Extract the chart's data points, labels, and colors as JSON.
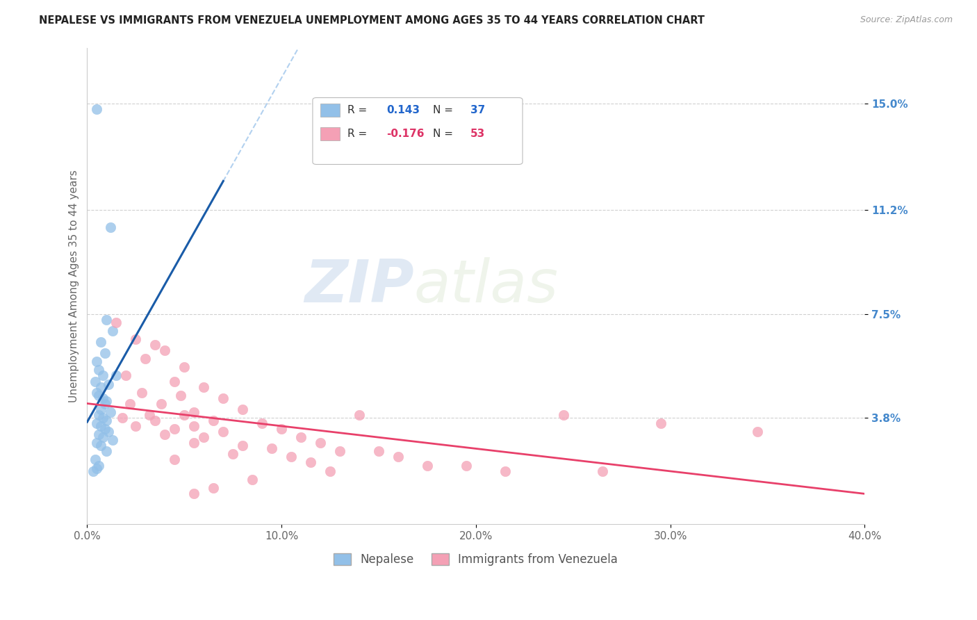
{
  "title": "NEPALESE VS IMMIGRANTS FROM VENEZUELA UNEMPLOYMENT AMONG AGES 35 TO 44 YEARS CORRELATION CHART",
  "source": "Source: ZipAtlas.com",
  "ylabel": "Unemployment Among Ages 35 to 44 years",
  "xlim": [
    0.0,
    40.0
  ],
  "ylim": [
    0.0,
    17.0
  ],
  "yticks": [
    3.8,
    7.5,
    11.2,
    15.0
  ],
  "xticks": [
    0.0,
    10.0,
    20.0,
    30.0,
    40.0
  ],
  "xtick_labels": [
    "0.0%",
    "10.0%",
    "20.0%",
    "30.0%",
    "40.0%"
  ],
  "ytick_labels": [
    "3.8%",
    "7.5%",
    "11.2%",
    "15.0%"
  ],
  "nepalese_color": "#92c0e8",
  "venezuela_color": "#f4a0b5",
  "nepalese_line_color": "#1a5ca8",
  "venezuela_line_color": "#e8406a",
  "nepalese_dash_color": "#aaccee",
  "nepalese_R": 0.143,
  "nepalese_N": 37,
  "venezuela_R": -0.176,
  "venezuela_N": 53,
  "watermark_zip": "ZIP",
  "watermark_atlas": "atlas",
  "nepalese_scatter": [
    [
      0.5,
      14.8
    ],
    [
      1.2,
      10.6
    ],
    [
      1.0,
      7.3
    ],
    [
      1.3,
      6.9
    ],
    [
      0.7,
      6.5
    ],
    [
      0.9,
      6.1
    ],
    [
      0.5,
      5.8
    ],
    [
      0.6,
      5.5
    ],
    [
      0.8,
      5.3
    ],
    [
      0.4,
      5.1
    ],
    [
      1.1,
      5.0
    ],
    [
      0.7,
      4.9
    ],
    [
      0.5,
      4.7
    ],
    [
      0.6,
      4.6
    ],
    [
      0.8,
      4.5
    ],
    [
      1.0,
      4.4
    ],
    [
      0.9,
      4.3
    ],
    [
      0.7,
      4.1
    ],
    [
      1.2,
      4.0
    ],
    [
      0.6,
      3.9
    ],
    [
      0.8,
      3.8
    ],
    [
      1.0,
      3.7
    ],
    [
      0.5,
      3.6
    ],
    [
      0.7,
      3.5
    ],
    [
      0.9,
      3.4
    ],
    [
      1.1,
      3.3
    ],
    [
      0.6,
      3.2
    ],
    [
      0.8,
      3.1
    ],
    [
      1.3,
      3.0
    ],
    [
      0.5,
      2.9
    ],
    [
      0.7,
      2.8
    ],
    [
      1.0,
      2.6
    ],
    [
      1.5,
      5.3
    ],
    [
      0.4,
      2.3
    ],
    [
      0.6,
      2.1
    ],
    [
      0.5,
      2.0
    ],
    [
      0.3,
      1.9
    ]
  ],
  "venezuela_scatter": [
    [
      1.5,
      7.2
    ],
    [
      2.5,
      6.6
    ],
    [
      3.5,
      6.4
    ],
    [
      4.0,
      6.2
    ],
    [
      3.0,
      5.9
    ],
    [
      5.0,
      5.6
    ],
    [
      2.0,
      5.3
    ],
    [
      4.5,
      5.1
    ],
    [
      6.0,
      4.9
    ],
    [
      2.8,
      4.7
    ],
    [
      4.8,
      4.6
    ],
    [
      7.0,
      4.5
    ],
    [
      2.2,
      4.3
    ],
    [
      3.8,
      4.3
    ],
    [
      8.0,
      4.1
    ],
    [
      5.5,
      4.0
    ],
    [
      3.2,
      3.9
    ],
    [
      5.0,
      3.9
    ],
    [
      1.8,
      3.8
    ],
    [
      6.5,
      3.7
    ],
    [
      3.5,
      3.7
    ],
    [
      9.0,
      3.6
    ],
    [
      2.5,
      3.5
    ],
    [
      5.5,
      3.5
    ],
    [
      10.0,
      3.4
    ],
    [
      4.5,
      3.4
    ],
    [
      7.0,
      3.3
    ],
    [
      4.0,
      3.2
    ],
    [
      11.0,
      3.1
    ],
    [
      6.0,
      3.1
    ],
    [
      14.0,
      3.9
    ],
    [
      12.0,
      2.9
    ],
    [
      5.5,
      2.9
    ],
    [
      8.0,
      2.8
    ],
    [
      9.5,
      2.7
    ],
    [
      15.0,
      2.6
    ],
    [
      13.0,
      2.6
    ],
    [
      7.5,
      2.5
    ],
    [
      10.5,
      2.4
    ],
    [
      16.0,
      2.4
    ],
    [
      4.5,
      2.3
    ],
    [
      11.5,
      2.2
    ],
    [
      17.5,
      2.1
    ],
    [
      19.5,
      2.1
    ],
    [
      12.5,
      1.9
    ],
    [
      21.5,
      1.9
    ],
    [
      24.5,
      3.9
    ],
    [
      8.5,
      1.6
    ],
    [
      29.5,
      3.6
    ],
    [
      34.5,
      3.3
    ],
    [
      26.5,
      1.9
    ],
    [
      6.5,
      1.3
    ],
    [
      5.5,
      1.1
    ]
  ]
}
